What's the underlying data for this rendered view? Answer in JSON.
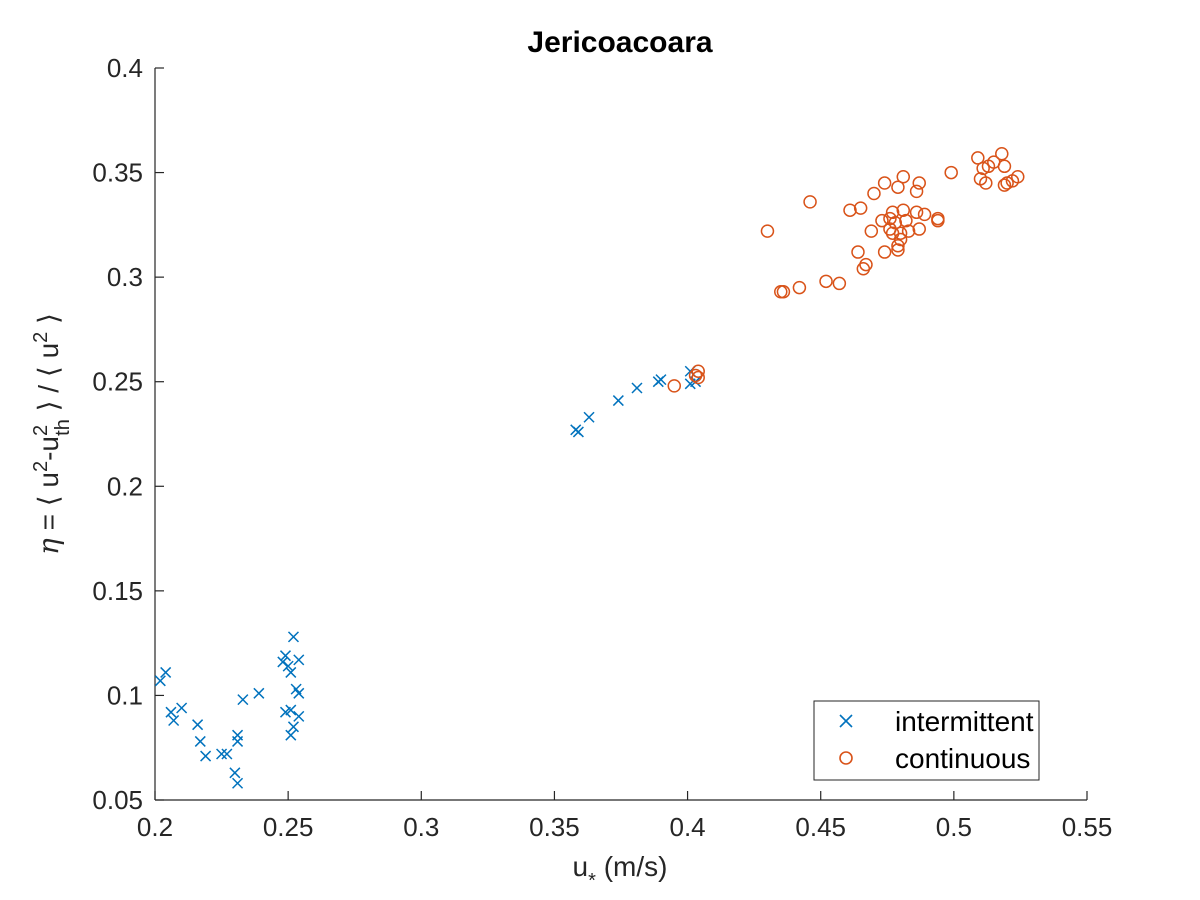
{
  "chart_data": {
    "type": "scatter",
    "title": "Jericoacoara",
    "xlabel": "u⁎ (m/s)",
    "ylabel": "η = ⟨ u²-u²th ⟩ / ⟨ u² ⟩",
    "xlim": [
      0.2,
      0.55
    ],
    "ylim": [
      0.05,
      0.4
    ],
    "x_ticks": [
      "0.2",
      "0.25",
      "0.3",
      "0.35",
      "0.4",
      "0.45",
      "0.5",
      "0.55"
    ],
    "y_ticks": [
      "0.05",
      "0.1",
      "0.15",
      "0.2",
      "0.25",
      "0.3",
      "0.35",
      "0.4"
    ],
    "grid": false,
    "legend_position": "bottom-right",
    "series": [
      {
        "name": "intermittent",
        "marker": "x",
        "color": "#0072BD",
        "points": [
          [
            0.202,
            0.107
          ],
          [
            0.204,
            0.111
          ],
          [
            0.206,
            0.092
          ],
          [
            0.207,
            0.088
          ],
          [
            0.21,
            0.094
          ],
          [
            0.216,
            0.086
          ],
          [
            0.217,
            0.078
          ],
          [
            0.219,
            0.071
          ],
          [
            0.225,
            0.072
          ],
          [
            0.227,
            0.072
          ],
          [
            0.23,
            0.063
          ],
          [
            0.231,
            0.058
          ],
          [
            0.231,
            0.078
          ],
          [
            0.231,
            0.081
          ],
          [
            0.233,
            0.098
          ],
          [
            0.239,
            0.101
          ],
          [
            0.248,
            0.116
          ],
          [
            0.249,
            0.119
          ],
          [
            0.249,
            0.092
          ],
          [
            0.25,
            0.114
          ],
          [
            0.251,
            0.111
          ],
          [
            0.251,
            0.093
          ],
          [
            0.251,
            0.081
          ],
          [
            0.252,
            0.085
          ],
          [
            0.252,
            0.128
          ],
          [
            0.253,
            0.103
          ],
          [
            0.254,
            0.117
          ],
          [
            0.254,
            0.09
          ],
          [
            0.254,
            0.101
          ],
          [
            0.358,
            0.227
          ],
          [
            0.359,
            0.226
          ],
          [
            0.363,
            0.233
          ],
          [
            0.374,
            0.241
          ],
          [
            0.381,
            0.247
          ],
          [
            0.389,
            0.25
          ],
          [
            0.39,
            0.251
          ],
          [
            0.401,
            0.249
          ],
          [
            0.401,
            0.255
          ],
          [
            0.403,
            0.25
          ]
        ]
      },
      {
        "name": "continuous",
        "marker": "o",
        "color": "#D95319",
        "points": [
          [
            0.395,
            0.248
          ],
          [
            0.403,
            0.253
          ],
          [
            0.404,
            0.255
          ],
          [
            0.404,
            0.252
          ],
          [
            0.43,
            0.322
          ],
          [
            0.435,
            0.293
          ],
          [
            0.436,
            0.293
          ],
          [
            0.442,
            0.295
          ],
          [
            0.446,
            0.336
          ],
          [
            0.452,
            0.298
          ],
          [
            0.457,
            0.297
          ],
          [
            0.461,
            0.332
          ],
          [
            0.464,
            0.312
          ],
          [
            0.465,
            0.333
          ],
          [
            0.466,
            0.304
          ],
          [
            0.467,
            0.306
          ],
          [
            0.469,
            0.322
          ],
          [
            0.47,
            0.34
          ],
          [
            0.473,
            0.327
          ],
          [
            0.474,
            0.312
          ],
          [
            0.474,
            0.345
          ],
          [
            0.476,
            0.328
          ],
          [
            0.476,
            0.323
          ],
          [
            0.477,
            0.321
          ],
          [
            0.477,
            0.331
          ],
          [
            0.478,
            0.326
          ],
          [
            0.479,
            0.313
          ],
          [
            0.479,
            0.315
          ],
          [
            0.479,
            0.343
          ],
          [
            0.48,
            0.321
          ],
          [
            0.48,
            0.318
          ],
          [
            0.481,
            0.348
          ],
          [
            0.481,
            0.332
          ],
          [
            0.482,
            0.327
          ],
          [
            0.483,
            0.322
          ],
          [
            0.486,
            0.341
          ],
          [
            0.486,
            0.331
          ],
          [
            0.487,
            0.345
          ],
          [
            0.487,
            0.323
          ],
          [
            0.489,
            0.33
          ],
          [
            0.494,
            0.328
          ],
          [
            0.494,
            0.327
          ],
          [
            0.499,
            0.35
          ],
          [
            0.509,
            0.357
          ],
          [
            0.51,
            0.347
          ],
          [
            0.511,
            0.352
          ],
          [
            0.512,
            0.345
          ],
          [
            0.513,
            0.353
          ],
          [
            0.515,
            0.355
          ],
          [
            0.518,
            0.359
          ],
          [
            0.519,
            0.344
          ],
          [
            0.519,
            0.353
          ],
          [
            0.52,
            0.345
          ],
          [
            0.522,
            0.346
          ],
          [
            0.524,
            0.348
          ]
        ]
      }
    ]
  }
}
